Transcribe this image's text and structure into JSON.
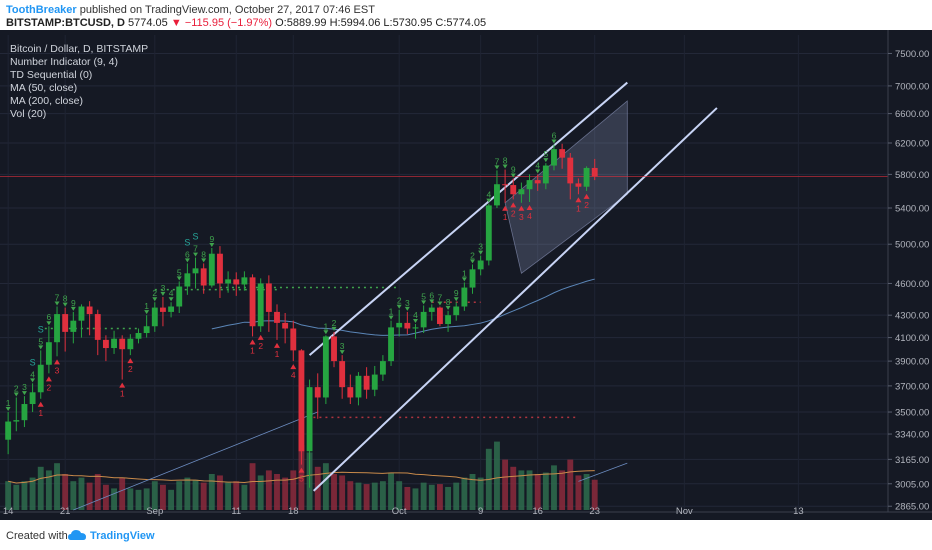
{
  "header": {
    "author": "ToothBreaker",
    "published": "published on TradingView.com, October 27, 2017 07:46 EST",
    "symbol": "BITSTAMP:BTCUSD, D",
    "last": "5774.05",
    "change": "−115.95 (−1.97%)",
    "ohlc": {
      "o": "O:5889.99",
      "h": "H:5994.06",
      "l": "L:5730.95",
      "c": "C:5774.05"
    }
  },
  "legend": [
    "Bitcoin / Dollar, D, BITSTAMP",
    "Number Indicator (9, 4)",
    "TD Sequential (0)",
    "MA (50, close)",
    "MA (200, close)",
    "Vol (20)"
  ],
  "footer": {
    "created_with": "Created with",
    "brand": "TradingView"
  },
  "colors": {
    "bg": "#151924",
    "up": "#26a541",
    "down": "#e0303e",
    "vol_up": "#2e6d4e",
    "vol_down": "#8c2a3c",
    "channel": "#c8d4f5",
    "ma50": "#5b86b8",
    "price_line": "#e0303e"
  },
  "chart_data": {
    "type": "candlestick",
    "symbol": "BTCUSD",
    "interval": "D",
    "y_scale": "log",
    "yticks": [
      7500,
      7000,
      6600,
      6200,
      5800,
      5400,
      5000,
      4600,
      4300,
      4100,
      3900,
      3700,
      3500,
      3340,
      3165,
      3005,
      2865
    ],
    "ytick_labels": [
      "7500.00",
      "7000.00",
      "6600.00",
      "6200.00",
      "5800.00",
      "5400.00",
      "5000.00",
      "4600.00",
      "4300.00",
      "4100.00",
      "3900.00",
      "3700.00",
      "3500.00",
      "3340.00",
      "3165.00",
      "3005.00",
      "2865.00"
    ],
    "ylim": [
      2830,
      7800
    ],
    "x_axis": [
      "14",
      "21",
      "Sep",
      "11",
      "18",
      "Oct",
      "9",
      "16",
      "23",
      "Nov",
      "13"
    ],
    "x_axis_offsets": [
      0,
      7,
      18,
      28,
      35,
      48,
      58,
      65,
      72,
      83,
      97
    ],
    "first_candle_date": "2017-08-07",
    "x_range_days": [
      -1,
      108
    ],
    "last_price_label": "5774.05",
    "last_price": 5774.05,
    "candles": [
      [
        3300,
        3500,
        3200,
        3430,
        0.4
      ],
      [
        3430,
        3610,
        3360,
        3440,
        0.35
      ],
      [
        3440,
        3620,
        3390,
        3560,
        0.4
      ],
      [
        3560,
        3720,
        3500,
        3650,
        0.45
      ],
      [
        3650,
        3990,
        3600,
        3870,
        0.6
      ],
      [
        3870,
        4200,
        3800,
        4060,
        0.55
      ],
      [
        4060,
        4380,
        3940,
        4310,
        0.65
      ],
      [
        4310,
        4370,
        3980,
        4150,
        0.5
      ],
      [
        4150,
        4330,
        4050,
        4250,
        0.4
      ],
      [
        4250,
        4400,
        4100,
        4380,
        0.45
      ],
      [
        4380,
        4430,
        4120,
        4310,
        0.38
      ],
      [
        4310,
        4350,
        3950,
        4080,
        0.5
      ],
      [
        4080,
        4120,
        3900,
        4010,
        0.35
      ],
      [
        4010,
        4160,
        3960,
        4090,
        0.3
      ],
      [
        4090,
        4120,
        3750,
        4000,
        0.45
      ],
      [
        4000,
        4130,
        3950,
        4090,
        0.3
      ],
      [
        4090,
        4180,
        4050,
        4140,
        0.28
      ],
      [
        4140,
        4300,
        4100,
        4200,
        0.3
      ],
      [
        4200,
        4420,
        4150,
        4370,
        0.4
      ],
      [
        4370,
        4470,
        4200,
        4330,
        0.35
      ],
      [
        4330,
        4420,
        4280,
        4380,
        0.28
      ],
      [
        4380,
        4620,
        4320,
        4570,
        0.4
      ],
      [
        4570,
        4800,
        4490,
        4700,
        0.45
      ],
      [
        4700,
        4860,
        4550,
        4750,
        0.42
      ],
      [
        4750,
        4800,
        4500,
        4580,
        0.38
      ],
      [
        4580,
        4960,
        4560,
        4900,
        0.5
      ],
      [
        4900,
        4980,
        4460,
        4600,
        0.48
      ],
      [
        4600,
        4720,
        4510,
        4640,
        0.38
      ],
      [
        4640,
        4710,
        4480,
        4590,
        0.4
      ],
      [
        4590,
        4720,
        4530,
        4660,
        0.35
      ],
      [
        4660,
        4690,
        4110,
        4200,
        0.65
      ],
      [
        4200,
        4650,
        4150,
        4600,
        0.48
      ],
      [
        4600,
        4680,
        4150,
        4330,
        0.55
      ],
      [
        4330,
        4400,
        4080,
        4230,
        0.5
      ],
      [
        4230,
        4320,
        4050,
        4180,
        0.45
      ],
      [
        4180,
        4250,
        3900,
        3990,
        0.55
      ],
      [
        3990,
        4000,
        3130,
        3220,
        0.9
      ],
      [
        3220,
        3750,
        2980,
        3690,
        0.8
      ],
      [
        3690,
        3800,
        3450,
        3610,
        0.6
      ],
      [
        3610,
        4120,
        3560,
        4110,
        0.65
      ],
      [
        4110,
        4150,
        3850,
        3900,
        0.5
      ],
      [
        3900,
        3950,
        3600,
        3690,
        0.48
      ],
      [
        3690,
        3790,
        3560,
        3610,
        0.4
      ],
      [
        3610,
        3810,
        3550,
        3780,
        0.38
      ],
      [
        3780,
        3850,
        3600,
        3670,
        0.36
      ],
      [
        3670,
        3860,
        3620,
        3790,
        0.38
      ],
      [
        3790,
        3950,
        3740,
        3900,
        0.4
      ],
      [
        3900,
        4250,
        3860,
        4190,
        0.52
      ],
      [
        4190,
        4350,
        4110,
        4230,
        0.4
      ],
      [
        4230,
        4330,
        4130,
        4180,
        0.32
      ],
      [
        4180,
        4220,
        4090,
        4190,
        0.3
      ],
      [
        4190,
        4390,
        4140,
        4330,
        0.38
      ],
      [
        4330,
        4400,
        4250,
        4370,
        0.35
      ],
      [
        4370,
        4380,
        4200,
        4220,
        0.36
      ],
      [
        4220,
        4340,
        4150,
        4300,
        0.32
      ],
      [
        4300,
        4420,
        4250,
        4380,
        0.38
      ],
      [
        4380,
        4610,
        4340,
        4560,
        0.45
      ],
      [
        4560,
        4790,
        4500,
        4740,
        0.5
      ],
      [
        4740,
        4880,
        4680,
        4830,
        0.45
      ],
      [
        4830,
        5450,
        4780,
        5430,
        0.85
      ],
      [
        5430,
        5850,
        5400,
        5680,
        0.95
      ],
      [
        5680,
        5860,
        5460,
        5670,
        0.7
      ],
      [
        5670,
        5750,
        5500,
        5560,
        0.6
      ],
      [
        5560,
        5700,
        5460,
        5620,
        0.55
      ],
      [
        5620,
        5800,
        5470,
        5730,
        0.55
      ],
      [
        5730,
        5800,
        5600,
        5690,
        0.5
      ],
      [
        5690,
        5940,
        5620,
        5910,
        0.52
      ],
      [
        5910,
        6180,
        5850,
        6120,
        0.62
      ],
      [
        6120,
        6190,
        5870,
        6010,
        0.55
      ],
      [
        6010,
        6070,
        5500,
        5690,
        0.7
      ],
      [
        5690,
        5750,
        5560,
        5650,
        0.48
      ],
      [
        5650,
        5900,
        5600,
        5880,
        0.5
      ],
      [
        5880,
        5994,
        5730,
        5774,
        0.42
      ]
    ],
    "td_sequential": {
      "buy_labels": [
        "1",
        "2",
        "3",
        "4",
        "5",
        "6",
        "7",
        "8",
        "9"
      ],
      "sell_labels": [
        "1",
        "2",
        "3",
        "4",
        "5",
        "6",
        "7",
        "8",
        "9"
      ],
      "perfected_label": "S"
    }
  }
}
